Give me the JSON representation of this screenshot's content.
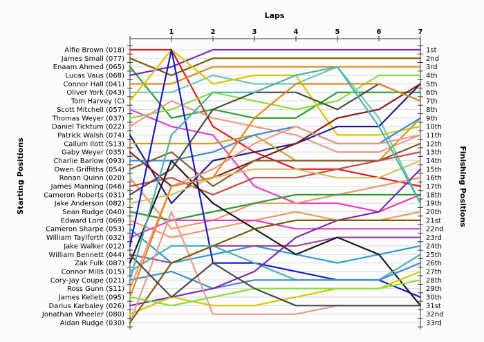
{
  "chart_data": {
    "type": "line",
    "title": "Laps",
    "ylabel_left": "Starting Positions",
    "ylabel_right": "Finishing Positions",
    "x": [
      0,
      1,
      2,
      3,
      4,
      5,
      6,
      7
    ],
    "x_tick_labels": [
      "1",
      "2",
      "3",
      "4",
      "5",
      "6",
      "7"
    ],
    "finishing_positions": [
      "1st",
      "2nd",
      "3rd",
      "4th",
      "5th",
      "6th",
      "7th",
      "8th",
      "9th",
      "10th",
      "11th",
      "12th",
      "13th",
      "14th",
      "15th",
      "16th",
      "17th",
      "18th",
      "19th",
      "20th",
      "21st",
      "22nd",
      "23rd",
      "24th",
      "25th",
      "26th",
      "27th",
      "28th",
      "29th",
      "30th",
      "31st",
      "32nd",
      "33rd"
    ],
    "grid": true,
    "series": [
      {
        "name": "Alfie Brown (018)",
        "color": "#dd1a1a",
        "values": [
          1,
          1,
          10,
          13,
          15,
          15,
          16,
          17
        ]
      },
      {
        "name": "James Small (077)",
        "color": "#7b5c00",
        "values": [
          2,
          4,
          2,
          2,
          2,
          2,
          2,
          2
        ]
      },
      {
        "name": "Enaam Ahmed (065)",
        "color": "#2c9b2c",
        "values": [
          3,
          9,
          8,
          9,
          9,
          6,
          6,
          6
        ]
      },
      {
        "name": "Lucas Vaus (068)",
        "color": "#7a2cab",
        "values": [
          4,
          3,
          1,
          1,
          1,
          1,
          1,
          1
        ]
      },
      {
        "name": "Connor Hall (041)",
        "color": "#e8861c",
        "values": [
          5,
          5,
          3,
          3,
          3,
          3,
          3,
          3
        ]
      },
      {
        "name": "Oliver York (043)",
        "color": "#6dc8b0",
        "values": [
          6,
          6,
          4,
          5,
          5,
          3,
          9,
          19
        ]
      },
      {
        "name": "Tom Harvey (C)",
        "color": "#d4c900",
        "values": [
          7,
          1,
          5,
          4,
          4,
          11,
          11,
          10
        ]
      },
      {
        "name": "Scott Mitchell (057)",
        "color": "#e640c0",
        "values": [
          8,
          10,
          11,
          17,
          19,
          19,
          20,
          18
        ]
      },
      {
        "name": "Thomas Weyer (037)",
        "color": "#88dd3a",
        "values": [
          9,
          8,
          6,
          7,
          8,
          7,
          4,
          4
        ]
      },
      {
        "name": "Daniel Ticktum (022)",
        "color": "#ea9a8a",
        "values": [
          10,
          7,
          9,
          10,
          11,
          13,
          13,
          11
        ]
      },
      {
        "name": "Patrick Walsh (074)",
        "color": "#1e1e8a",
        "values": [
          11,
          19,
          14,
          13,
          12,
          10,
          10,
          5
        ]
      },
      {
        "name": "Callum Ilott (S13)",
        "color": "#c8a020",
        "values": [
          12,
          12,
          12,
          11,
          14,
          14,
          14,
          9
        ]
      },
      {
        "name": "Gaby Weyer (035)",
        "color": "#8a1a1a",
        "values": [
          13,
          17,
          16,
          14,
          12,
          9,
          8,
          5
        ]
      },
      {
        "name": "Charlie Barlow (093)",
        "color": "#3a8ad4",
        "values": [
          14,
          14,
          13,
          11,
          10,
          12,
          12,
          9
        ]
      },
      {
        "name": "Owen Griffiths (054)",
        "color": "#8a5a28",
        "values": [
          15,
          13,
          17,
          14,
          14,
          14,
          14,
          12
        ]
      },
      {
        "name": "Ronan Quinn (020)",
        "color": "#ea9a6a",
        "values": [
          16,
          22,
          21,
          19,
          19,
          18,
          17,
          16
        ]
      },
      {
        "name": "James Manning (046)",
        "color": "#c84a4a",
        "values": [
          17,
          16,
          18,
          16,
          16,
          15,
          14,
          13
        ]
      },
      {
        "name": "Cameron Roberts (031)",
        "color": "#4a4a4a",
        "values": [
          18,
          15,
          8,
          6,
          6,
          8,
          5,
          7
        ]
      },
      {
        "name": "Jake Anderson (082)",
        "color": "#d4c060",
        "values": [
          19,
          18,
          16,
          15,
          15,
          16,
          16,
          14
        ]
      },
      {
        "name": "Sean Rudge (040)",
        "color": "#2c9b2c",
        "values": [
          20,
          21,
          20,
          19,
          18,
          18,
          18,
          18
        ]
      },
      {
        "name": "Edward Lord (069)",
        "color": "#ea9a6a",
        "values": [
          21,
          23,
          22,
          21,
          20,
          21,
          21,
          20
        ]
      },
      {
        "name": "Cameron Sharpe (053)",
        "color": "#2a9bd4",
        "values": [
          22,
          26,
          25,
          24,
          25,
          26,
          25,
          24
        ]
      },
      {
        "name": "William Taylforth (032)",
        "color": "#e640c0",
        "values": [
          23,
          21,
          21,
          21,
          22,
          22,
          22,
          22
        ]
      },
      {
        "name": "Jake Walker (012)",
        "color": "#1a1ac8",
        "values": [
          24,
          1,
          26,
          26,
          27,
          28,
          28,
          30
        ]
      },
      {
        "name": "William Bennett (044)",
        "color": "#9b4a9b",
        "values": [
          25,
          26,
          24,
          24,
          24,
          23,
          23,
          23
        ]
      },
      {
        "name": "Zak Fulk (087)",
        "color": "#1a1a1a",
        "values": [
          26,
          14,
          19,
          22,
          25,
          23,
          25,
          31
        ]
      },
      {
        "name": "Connor Mills (015)",
        "color": "#4ab0b0",
        "values": [
          27,
          24,
          24,
          26,
          28,
          28,
          28,
          25
        ]
      },
      {
        "name": "Cory-Jay Coupe (021)",
        "color": "#3a8ad4",
        "values": [
          28,
          27,
          29,
          28,
          28,
          28,
          28,
          26
        ]
      },
      {
        "name": "Ross Gunn (S11)",
        "color": "#ea9a8a",
        "values": [
          29,
          17,
          15,
          12,
          10,
          12,
          12,
          11
        ]
      },
      {
        "name": "James Kellett (095)",
        "color": "#e8861c",
        "values": [
          30,
          17,
          16,
          9,
          5,
          5,
          5,
          7
        ]
      },
      {
        "name": "Darius Karbaley (026)",
        "color": "#7a2cab",
        "values": [
          31,
          30,
          29,
          27,
          23,
          21,
          20,
          15
        ]
      },
      {
        "name": "Jonathan Wheeler (080)",
        "color": "#d4c900",
        "values": [
          32,
          30,
          31,
          31,
          30,
          29,
          29,
          27
        ]
      },
      {
        "name": "Aidan Rudge (030)",
        "color": "#ea9a8a",
        "values": [
          33,
          20,
          32,
          32,
          32,
          31,
          31,
          31
        ]
      },
      {
        "name": "",
        "color": "#7b5c00",
        "values": [
          33,
          26,
          24,
          22,
          21,
          21,
          21,
          21
        ]
      },
      {
        "name": "",
        "color": "#88dd3a",
        "values": [
          30,
          31,
          30,
          29,
          29,
          29,
          29,
          28
        ]
      },
      {
        "name": "",
        "color": "#4a4a4a",
        "values": [
          25,
          30,
          26,
          29,
          31,
          31,
          31,
          31
        ]
      },
      {
        "name": "",
        "color": "#4ab0b0",
        "values": [
          28,
          11,
          6,
          6,
          4,
          3,
          10,
          19
        ]
      }
    ]
  }
}
